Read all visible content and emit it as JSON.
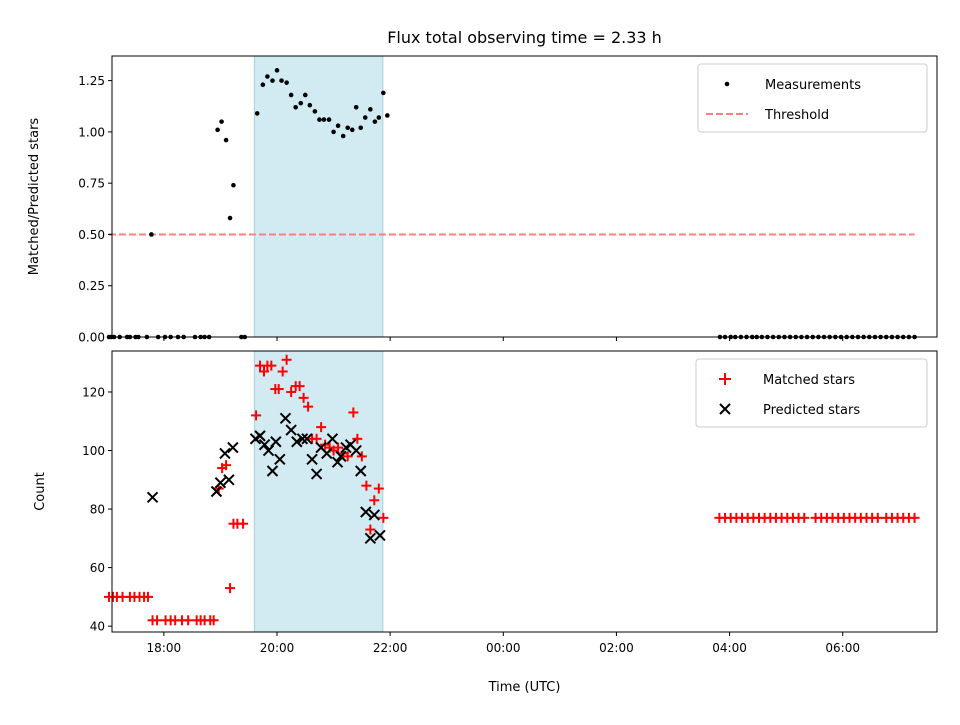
{
  "title": "Flux total observing time = 2.33 h",
  "colors": {
    "measure": "#000000",
    "threshold": "#ff7f7f",
    "span": "#add8e6",
    "matched": "#ff0000",
    "predicted": "#000000"
  },
  "chart_data": [
    {
      "type": "scatter",
      "title": "Flux total observing time = 2.33 h",
      "xlabel": "",
      "ylabel": "Matched/Predicted stars",
      "xlim": [
        "17:05",
        "31:40"
      ],
      "ylim": [
        0,
        1.37
      ],
      "yticks": [
        0.0,
        0.25,
        0.5,
        0.75,
        1.0,
        1.25
      ],
      "ytick_labels": [
        "0.00",
        "0.25",
        "0.50",
        "0.75",
        "1.00",
        "1.25"
      ],
      "x_time_axis": "UTC, x values are hours from 00:00 of the first day",
      "shaded_span": [
        19.6,
        21.87
      ],
      "legend": {
        "position": "upper right",
        "entries": [
          "Measurements",
          "Threshold"
        ]
      },
      "threshold": {
        "name": "Threshold",
        "value": 0.5,
        "x": [
          17.03,
          31.27
        ]
      },
      "series": [
        {
          "name": "Measurements",
          "points": [
            [
              17.03,
              0
            ],
            [
              17.07,
              0
            ],
            [
              17.12,
              0
            ],
            [
              17.22,
              0
            ],
            [
              17.35,
              0
            ],
            [
              17.4,
              0
            ],
            [
              17.5,
              0
            ],
            [
              17.55,
              0
            ],
            [
              17.7,
              0
            ],
            [
              17.78,
              0.5
            ],
            [
              17.9,
              0
            ],
            [
              18.02,
              0
            ],
            [
              18.12,
              0
            ],
            [
              18.25,
              0
            ],
            [
              18.35,
              0
            ],
            [
              18.55,
              0
            ],
            [
              18.65,
              0
            ],
            [
              18.72,
              0
            ],
            [
              18.8,
              0
            ],
            [
              18.95,
              1.01
            ],
            [
              19.02,
              1.05
            ],
            [
              19.1,
              0.96
            ],
            [
              19.17,
              0.58
            ],
            [
              19.23,
              0.74
            ],
            [
              19.37,
              0
            ],
            [
              19.43,
              0
            ],
            [
              19.65,
              1.09
            ],
            [
              19.75,
              1.23
            ],
            [
              19.83,
              1.27
            ],
            [
              19.92,
              1.25
            ],
            [
              20.0,
              1.3
            ],
            [
              20.08,
              1.25
            ],
            [
              20.17,
              1.24
            ],
            [
              20.25,
              1.18
            ],
            [
              20.33,
              1.12
            ],
            [
              20.42,
              1.14
            ],
            [
              20.5,
              1.18
            ],
            [
              20.58,
              1.13
            ],
            [
              20.67,
              1.1
            ],
            [
              20.75,
              1.06
            ],
            [
              20.83,
              1.06
            ],
            [
              20.92,
              1.06
            ],
            [
              21.0,
              1.0
            ],
            [
              21.08,
              1.03
            ],
            [
              21.17,
              0.98
            ],
            [
              21.25,
              1.02
            ],
            [
              21.33,
              1.01
            ],
            [
              21.4,
              1.12
            ],
            [
              21.48,
              1.02
            ],
            [
              21.56,
              1.07
            ],
            [
              21.65,
              1.11
            ],
            [
              21.73,
              1.05
            ],
            [
              21.8,
              1.07
            ],
            [
              21.88,
              1.19
            ],
            [
              21.95,
              1.08
            ],
            [
              27.83,
              0
            ],
            [
              27.92,
              0
            ],
            [
              28.02,
              0
            ],
            [
              28.1,
              0
            ],
            [
              28.2,
              0
            ],
            [
              28.3,
              0
            ],
            [
              28.4,
              0
            ],
            [
              28.48,
              0
            ],
            [
              28.57,
              0
            ],
            [
              28.67,
              0
            ],
            [
              28.77,
              0
            ],
            [
              28.87,
              0
            ],
            [
              28.97,
              0
            ],
            [
              29.07,
              0
            ],
            [
              29.17,
              0
            ],
            [
              29.27,
              0
            ],
            [
              29.37,
              0
            ],
            [
              29.47,
              0
            ],
            [
              29.57,
              0
            ],
            [
              29.67,
              0
            ],
            [
              29.77,
              0
            ],
            [
              29.87,
              0
            ],
            [
              29.97,
              0
            ],
            [
              30.07,
              0
            ],
            [
              30.17,
              0
            ],
            [
              30.27,
              0
            ],
            [
              30.37,
              0
            ],
            [
              30.47,
              0
            ],
            [
              30.57,
              0
            ],
            [
              30.67,
              0
            ],
            [
              30.77,
              0
            ],
            [
              30.87,
              0
            ],
            [
              30.97,
              0
            ],
            [
              31.07,
              0
            ],
            [
              31.17,
              0
            ],
            [
              31.27,
              0
            ]
          ]
        }
      ]
    },
    {
      "type": "scatter",
      "title": "",
      "xlabel": "Time (UTC)",
      "ylabel": "Count",
      "xlim": [
        "17:05",
        "31:40"
      ],
      "ylim": [
        38,
        134
      ],
      "yticks": [
        40,
        60,
        80,
        100,
        120
      ],
      "ytick_labels": [
        "40",
        "60",
        "80",
        "100",
        "120"
      ],
      "xticks": [
        18,
        20,
        22,
        24,
        26,
        28,
        30
      ],
      "xtick_labels": [
        "18:00",
        "20:00",
        "22:00",
        "00:00",
        "02:00",
        "04:00",
        "06:00"
      ],
      "shaded_span": [
        19.6,
        21.87
      ],
      "legend": {
        "position": "upper right",
        "entries": [
          "Matched stars",
          "Predicted stars"
        ]
      },
      "series": [
        {
          "name": "Matched stars",
          "marker": "+",
          "points": [
            [
              17.03,
              50
            ],
            [
              17.1,
              50
            ],
            [
              17.17,
              50
            ],
            [
              17.27,
              50
            ],
            [
              17.4,
              50
            ],
            [
              17.48,
              50
            ],
            [
              17.57,
              50
            ],
            [
              17.65,
              50
            ],
            [
              17.72,
              50
            ],
            [
              17.8,
              42
            ],
            [
              17.88,
              42
            ],
            [
              18.03,
              42
            ],
            [
              18.12,
              42
            ],
            [
              18.2,
              42
            ],
            [
              18.32,
              42
            ],
            [
              18.43,
              42
            ],
            [
              18.58,
              42
            ],
            [
              18.65,
              42
            ],
            [
              18.72,
              42
            ],
            [
              18.82,
              42
            ],
            [
              18.88,
              42
            ],
            [
              18.97,
              87
            ],
            [
              19.03,
              94
            ],
            [
              19.1,
              95
            ],
            [
              19.17,
              53
            ],
            [
              19.23,
              75
            ],
            [
              19.3,
              75
            ],
            [
              19.4,
              75
            ],
            [
              19.63,
              112
            ],
            [
              19.7,
              129
            ],
            [
              19.77,
              127
            ],
            [
              19.83,
              129
            ],
            [
              19.9,
              129
            ],
            [
              19.97,
              121
            ],
            [
              20.03,
              121
            ],
            [
              20.1,
              127
            ],
            [
              20.17,
              131
            ],
            [
              20.25,
              120
            ],
            [
              20.33,
              122
            ],
            [
              20.4,
              122
            ],
            [
              20.47,
              118
            ],
            [
              20.55,
              115
            ],
            [
              20.62,
              104
            ],
            [
              20.7,
              104
            ],
            [
              20.78,
              108
            ],
            [
              20.85,
              102
            ],
            [
              20.93,
              101
            ],
            [
              21.0,
              100
            ],
            [
              21.08,
              101
            ],
            [
              21.17,
              99
            ],
            [
              21.25,
              98
            ],
            [
              21.35,
              113
            ],
            [
              21.42,
              104
            ],
            [
              21.5,
              98
            ],
            [
              21.58,
              88
            ],
            [
              21.65,
              73
            ],
            [
              21.72,
              83
            ],
            [
              21.8,
              87
            ],
            [
              21.88,
              77
            ],
            [
              27.82,
              77
            ],
            [
              27.92,
              77
            ],
            [
              28.02,
              77
            ],
            [
              28.12,
              77
            ],
            [
              28.22,
              77
            ],
            [
              28.32,
              77
            ],
            [
              28.42,
              77
            ],
            [
              28.52,
              77
            ],
            [
              28.62,
              77
            ],
            [
              28.72,
              77
            ],
            [
              28.82,
              77
            ],
            [
              28.92,
              77
            ],
            [
              29.02,
              77
            ],
            [
              29.12,
              77
            ],
            [
              29.22,
              77
            ],
            [
              29.32,
              77
            ],
            [
              29.52,
              77
            ],
            [
              29.62,
              77
            ],
            [
              29.72,
              77
            ],
            [
              29.82,
              77
            ],
            [
              29.92,
              77
            ],
            [
              30.02,
              77
            ],
            [
              30.12,
              77
            ],
            [
              30.22,
              77
            ],
            [
              30.32,
              77
            ],
            [
              30.42,
              77
            ],
            [
              30.52,
              77
            ],
            [
              30.62,
              77
            ],
            [
              30.77,
              77
            ],
            [
              30.87,
              77
            ],
            [
              30.97,
              77
            ],
            [
              31.07,
              77
            ],
            [
              31.17,
              77
            ],
            [
              31.27,
              77
            ]
          ]
        },
        {
          "name": "Predicted stars",
          "marker": "x",
          "points": [
            [
              17.8,
              84
            ],
            [
              18.93,
              86
            ],
            [
              19.0,
              89
            ],
            [
              19.08,
              99
            ],
            [
              19.15,
              90
            ],
            [
              19.22,
              101
            ],
            [
              19.62,
              104
            ],
            [
              19.7,
              105
            ],
            [
              19.78,
              102
            ],
            [
              19.85,
              100
            ],
            [
              19.92,
              93
            ],
            [
              19.98,
              103
            ],
            [
              20.05,
              97
            ],
            [
              20.15,
              111
            ],
            [
              20.25,
              107
            ],
            [
              20.35,
              103
            ],
            [
              20.45,
              104
            ],
            [
              20.53,
              104
            ],
            [
              20.62,
              97
            ],
            [
              20.7,
              92
            ],
            [
              20.78,
              101
            ],
            [
              20.88,
              99
            ],
            [
              20.98,
              104
            ],
            [
              21.07,
              96
            ],
            [
              21.13,
              98
            ],
            [
              21.22,
              101
            ],
            [
              21.3,
              102
            ],
            [
              21.4,
              100
            ],
            [
              21.48,
              93
            ],
            [
              21.57,
              79
            ],
            [
              21.65,
              70
            ],
            [
              21.72,
              78
            ],
            [
              21.82,
              71
            ]
          ]
        }
      ]
    }
  ]
}
